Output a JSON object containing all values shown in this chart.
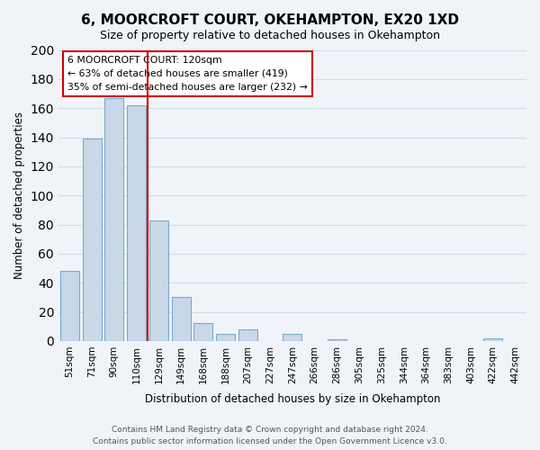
{
  "title": "6, MOORCROFT COURT, OKEHAMPTON, EX20 1XD",
  "subtitle": "Size of property relative to detached houses in Okehampton",
  "xlabel": "Distribution of detached houses by size in Okehampton",
  "ylabel": "Number of detached properties",
  "bar_labels": [
    "51sqm",
    "71sqm",
    "90sqm",
    "110sqm",
    "129sqm",
    "149sqm",
    "168sqm",
    "188sqm",
    "207sqm",
    "227sqm",
    "247sqm",
    "266sqm",
    "286sqm",
    "305sqm",
    "325sqm",
    "344sqm",
    "364sqm",
    "383sqm",
    "403sqm",
    "422sqm",
    "442sqm"
  ],
  "bar_values": [
    48,
    139,
    167,
    162,
    83,
    30,
    12,
    5,
    8,
    0,
    5,
    0,
    1,
    0,
    0,
    0,
    0,
    0,
    0,
    2,
    0
  ],
  "bar_color": "#c8d8e8",
  "bar_edge_color": "#7aabcc",
  "ylim": [
    0,
    200
  ],
  "yticks": [
    0,
    20,
    40,
    60,
    80,
    100,
    120,
    140,
    160,
    180,
    200
  ],
  "vline_x": 3.5,
  "vline_color": "#cc0000",
  "annotation_title": "6 MOORCROFT COURT: 120sqm",
  "annotation_line1": "← 63% of detached houses are smaller (419)",
  "annotation_line2": "35% of semi-detached houses are larger (232) →",
  "annotation_box_color": "#ffffff",
  "annotation_box_edge": "#cc0000",
  "footer_line1": "Contains HM Land Registry data © Crown copyright and database right 2024.",
  "footer_line2": "Contains public sector information licensed under the Open Government Licence v3.0.",
  "grid_color": "#d0dce8",
  "background_color": "#f0f4f8"
}
